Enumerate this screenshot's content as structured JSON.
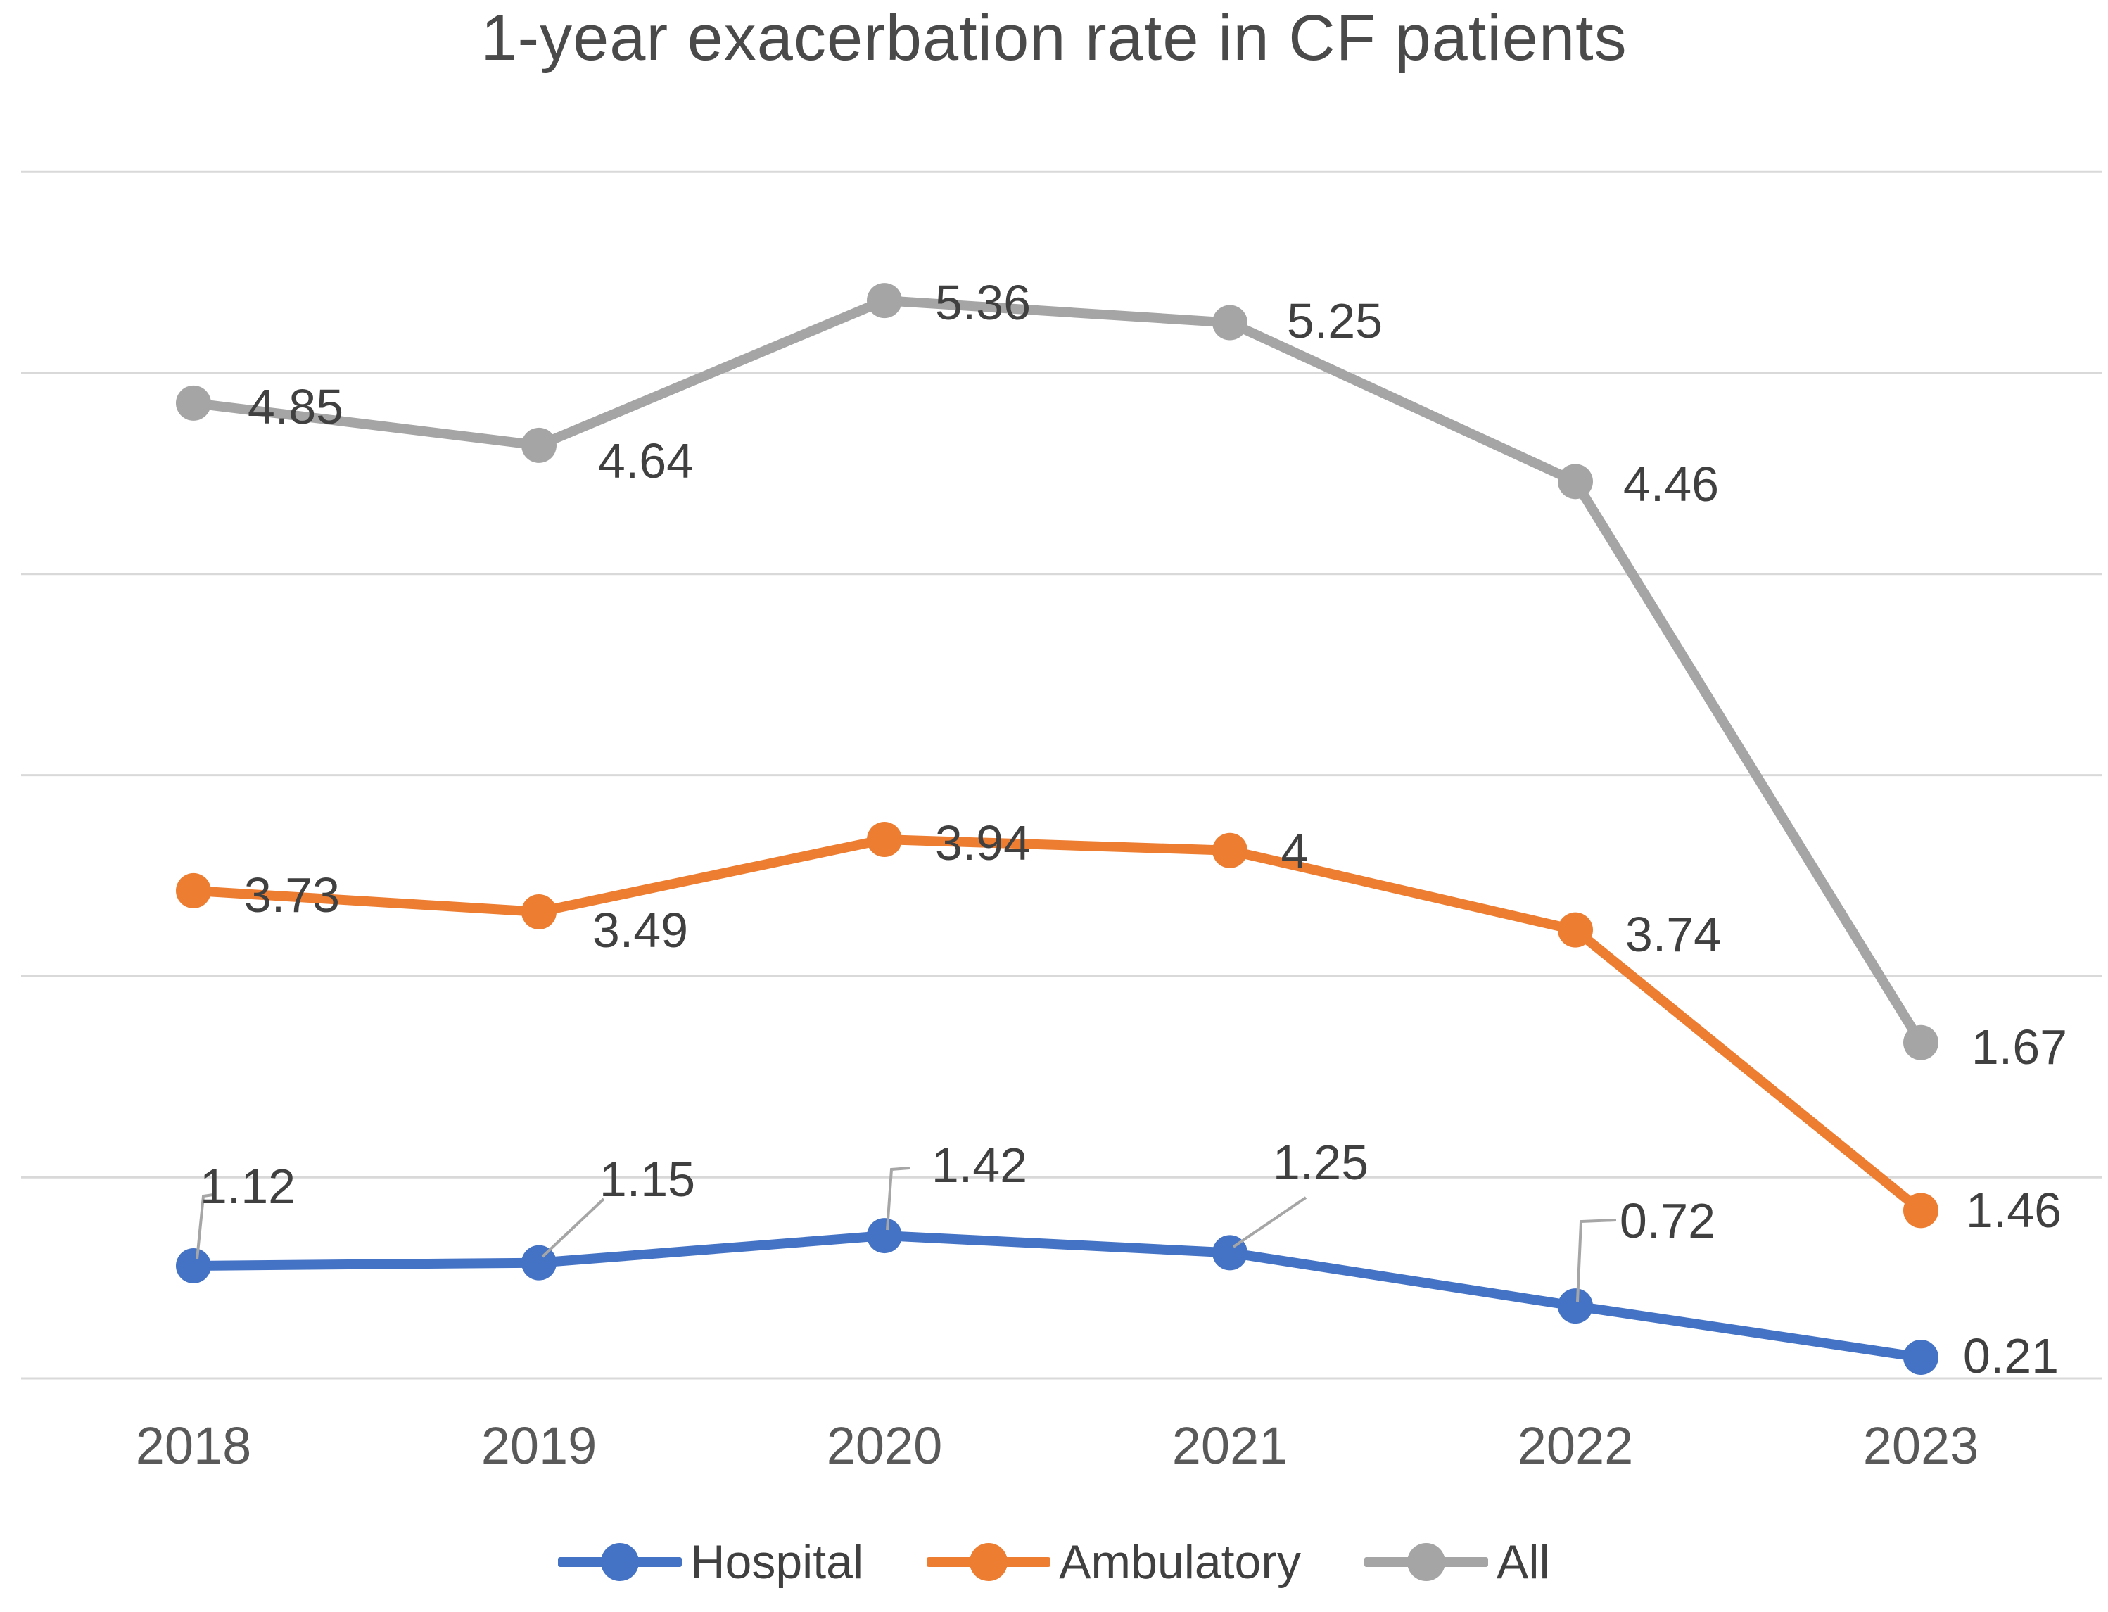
{
  "chart_data": {
    "type": "line",
    "title": "1-year exacerbation rate in CF patients",
    "categories": [
      "2018",
      "2019",
      "2020",
      "2021",
      "2022",
      "2023"
    ],
    "series": [
      {
        "name": "Hospital",
        "color": "#4472C4",
        "values": [
          1.12,
          1.15,
          1.42,
          1.25,
          0.72,
          0.21
        ],
        "labels": [
          "1.12",
          "1.15",
          "1.42",
          "1.25",
          "0.72",
          "0.21"
        ]
      },
      {
        "name": "Ambulatory",
        "color": "#ED7D31",
        "values": [
          3.73,
          3.49,
          3.94,
          4,
          3.74,
          1.46
        ],
        "labels": [
          "3.73",
          "3.49",
          "3.94",
          "4",
          "3.74",
          "1.46"
        ]
      },
      {
        "name": "All",
        "color": "#A5A5A5",
        "values": [
          4.85,
          4.64,
          5.36,
          5.25,
          4.46,
          1.67
        ],
        "labels": [
          "4.85",
          "4.64",
          "5.36",
          "5.25",
          "4.46",
          "1.67"
        ]
      }
    ],
    "ylim": [
      0,
      6
    ],
    "gridline_count": 7,
    "grid": "horizontal",
    "y_axis_labels_visible": false,
    "legend_position": "bottom",
    "data_labels_visible": true,
    "render_note": "lines are drawn stacked at half-values (Hospital/2, (Hospital+Ambulatory)/2, All) while data labels show true values",
    "style": {
      "background": "#FFFFFF",
      "gridline_color": "#D9D9D9",
      "leader_line_color": "#A6A6A6",
      "data_label_color": "#404040",
      "axis_label_color": "#595959",
      "title_color": "#4A4A4A"
    }
  }
}
